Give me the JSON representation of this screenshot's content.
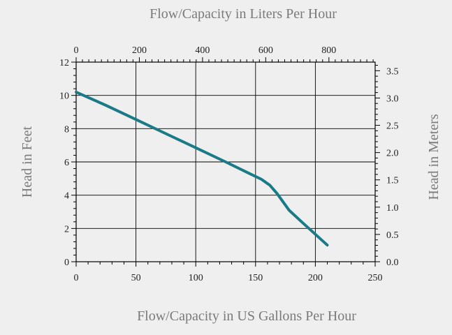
{
  "chart_data": {
    "type": "line",
    "title": "",
    "top_axis": {
      "label": "Flow/Capacity in Liters Per Hour",
      "range": [
        0,
        946.35
      ],
      "ticks": [
        0,
        200,
        400,
        600,
        800
      ],
      "tick_labels": [
        "0",
        "200",
        "400",
        "600",
        "800"
      ]
    },
    "bottom_axis": {
      "label": "Flow/Capacity in US Gallons Per Hour",
      "range": [
        0,
        250
      ],
      "ticks": [
        0,
        50,
        100,
        150,
        200,
        250
      ],
      "tick_labels": [
        "0",
        "50",
        "100",
        "150",
        "200",
        "250"
      ]
    },
    "left_axis": {
      "label": "Head in Feet",
      "range": [
        0,
        12
      ],
      "ticks": [
        0,
        2,
        4,
        6,
        8,
        10,
        12
      ],
      "tick_labels": [
        "0",
        "2",
        "4",
        "6",
        "8",
        "10",
        "12"
      ]
    },
    "right_axis": {
      "label": "Head in Meters",
      "range": [
        0,
        3.6576
      ],
      "ticks": [
        0,
        0.5,
        1.0,
        1.5,
        2.0,
        2.5,
        3.0,
        3.5
      ],
      "tick_labels": [
        "0.0",
        "0.5",
        "1.0",
        "1.5",
        "2.0",
        "2.5",
        "3.0",
        "3.5"
      ]
    },
    "grid": true,
    "series": [
      {
        "color": "#1b7a88",
        "x": [
          0,
          25,
          50,
          75,
          100,
          125,
          145,
          155,
          162,
          168,
          178,
          190,
          200,
          210
        ],
        "y": [
          10.2,
          9.4,
          8.55,
          7.7,
          6.85,
          6.0,
          5.3,
          4.95,
          4.6,
          4.1,
          3.1,
          2.3,
          1.65,
          1.0
        ]
      }
    ]
  }
}
